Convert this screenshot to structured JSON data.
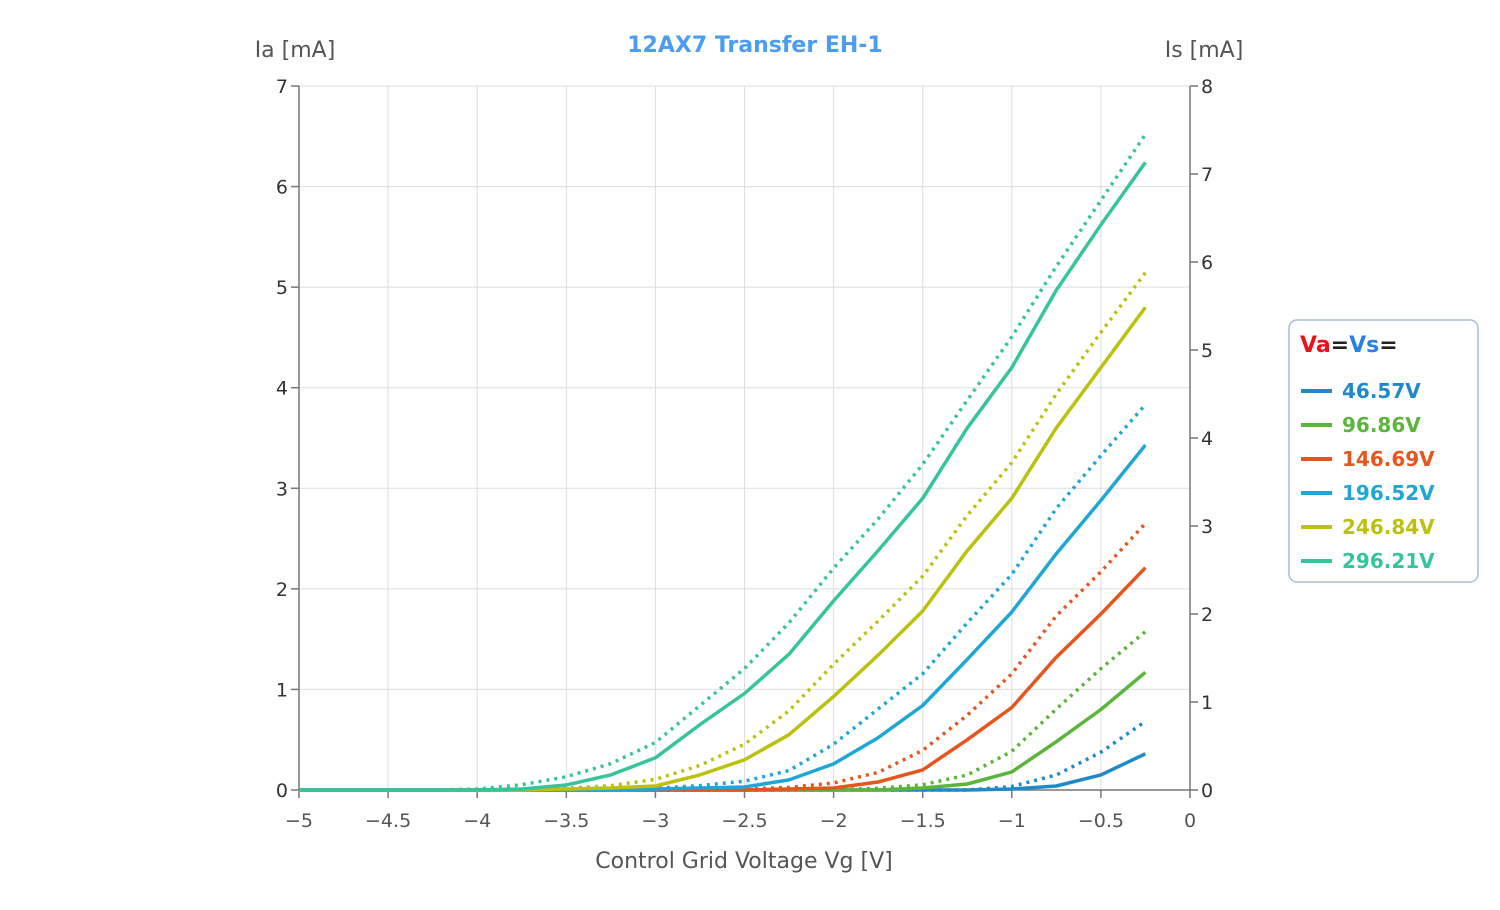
{
  "chart_data": {
    "type": "line",
    "title": "12AX7 Transfer EH-1",
    "xlabel": "Control Grid Voltage Vg [V]",
    "ylabel_left": "Ia [mA]",
    "ylabel_right": "Is [mA]",
    "xlim": [
      -5,
      0
    ],
    "ylim_left": [
      0,
      7
    ],
    "ylim_right": [
      0,
      8
    ],
    "xticks": [
      "−5",
      "−4.5",
      "−4",
      "−3.5",
      "−3",
      "−2.5",
      "−2",
      "−1.5",
      "−1",
      "−0.5",
      "0"
    ],
    "yticks_left": [
      "0",
      "1",
      "2",
      "3",
      "4",
      "5",
      "6",
      "7"
    ],
    "yticks_right": [
      "0",
      "1",
      "2",
      "3",
      "4",
      "5",
      "6",
      "7",
      "8"
    ],
    "grid": true,
    "legend": {
      "position": "right",
      "header_va": "Va",
      "header_eq1": "=",
      "header_vs": "Vs",
      "header_eq2": "=",
      "header_va_color": "#e8121c",
      "header_vs_color": "#2a82e0"
    },
    "x": [
      -5,
      -4.75,
      -4.5,
      -4.25,
      -4,
      -3.75,
      -3.5,
      -3.25,
      -3,
      -2.75,
      -2.5,
      -2.25,
      -2,
      -1.75,
      -1.5,
      -1.25,
      -1,
      -0.75,
      -0.5,
      -0.25
    ],
    "series": [
      {
        "name": "46.57V",
        "color": "#1f8ac6",
        "ia": [
          0,
          0,
          0,
          0,
          0,
          0,
          0,
          0,
          0,
          0,
          0,
          0,
          0,
          0,
          0,
          0,
          0.01,
          0.04,
          0.15,
          0.36
        ],
        "is": [
          0,
          0,
          0,
          0,
          0,
          0,
          0,
          0,
          0,
          0,
          0,
          0,
          0,
          0,
          0,
          0,
          0.04,
          0.17,
          0.43,
          0.78
        ]
      },
      {
        "name": "96.86V",
        "color": "#5ab53a",
        "ia": [
          0,
          0,
          0,
          0,
          0,
          0,
          0,
          0,
          0,
          0,
          0,
          0,
          0,
          0,
          0.02,
          0.06,
          0.18,
          0.48,
          0.8,
          1.17
        ],
        "is": [
          0,
          0,
          0,
          0,
          0,
          0,
          0,
          0,
          0,
          0,
          0,
          0,
          0,
          0.02,
          0.06,
          0.17,
          0.44,
          0.92,
          1.38,
          1.8
        ]
      },
      {
        "name": "146.69V",
        "color": "#e5561e",
        "ia": [
          0,
          0,
          0,
          0,
          0,
          0,
          0,
          0,
          0,
          0,
          0,
          0.01,
          0.02,
          0.08,
          0.2,
          0.5,
          0.82,
          1.32,
          1.75,
          2.21
        ],
        "is": [
          0,
          0,
          0,
          0,
          0,
          0,
          0,
          0,
          0,
          0,
          0.01,
          0.03,
          0.08,
          0.2,
          0.45,
          0.85,
          1.32,
          1.98,
          2.48,
          3.03
        ]
      },
      {
        "name": "196.52V",
        "color": "#1ea7d6",
        "ia": [
          0,
          0,
          0,
          0,
          0,
          0,
          0,
          0,
          0.01,
          0.02,
          0.03,
          0.1,
          0.26,
          0.52,
          0.84,
          1.3,
          1.77,
          2.35,
          2.88,
          3.43
        ],
        "is": [
          0,
          0,
          0,
          0,
          0,
          0,
          0,
          0,
          0.02,
          0.05,
          0.1,
          0.22,
          0.52,
          0.92,
          1.32,
          1.9,
          2.45,
          3.2,
          3.8,
          4.38
        ]
      },
      {
        "name": "246.84V",
        "color": "#bcc10e",
        "ia": [
          0,
          0,
          0,
          0,
          0,
          0,
          0.01,
          0.02,
          0.04,
          0.15,
          0.3,
          0.55,
          0.93,
          1.34,
          1.78,
          2.38,
          2.9,
          3.6,
          4.2,
          4.8
        ],
        "is": [
          0,
          0,
          0,
          0,
          0,
          0,
          0.02,
          0.05,
          0.12,
          0.28,
          0.52,
          0.9,
          1.43,
          1.92,
          2.43,
          3.12,
          3.72,
          4.5,
          5.2,
          5.88
        ]
      },
      {
        "name": "296.21V",
        "color": "#35c49b",
        "ia": [
          0,
          0,
          0,
          0,
          0,
          0.01,
          0.05,
          0.15,
          0.32,
          0.65,
          0.96,
          1.35,
          1.88,
          2.38,
          2.9,
          3.6,
          4.2,
          4.97,
          5.62,
          6.24
        ],
        "is": [
          0,
          0,
          0,
          0,
          0.01,
          0.06,
          0.15,
          0.3,
          0.54,
          0.96,
          1.38,
          1.9,
          2.52,
          3.08,
          3.7,
          4.43,
          5.15,
          5.95,
          6.7,
          7.45
        ]
      }
    ]
  }
}
